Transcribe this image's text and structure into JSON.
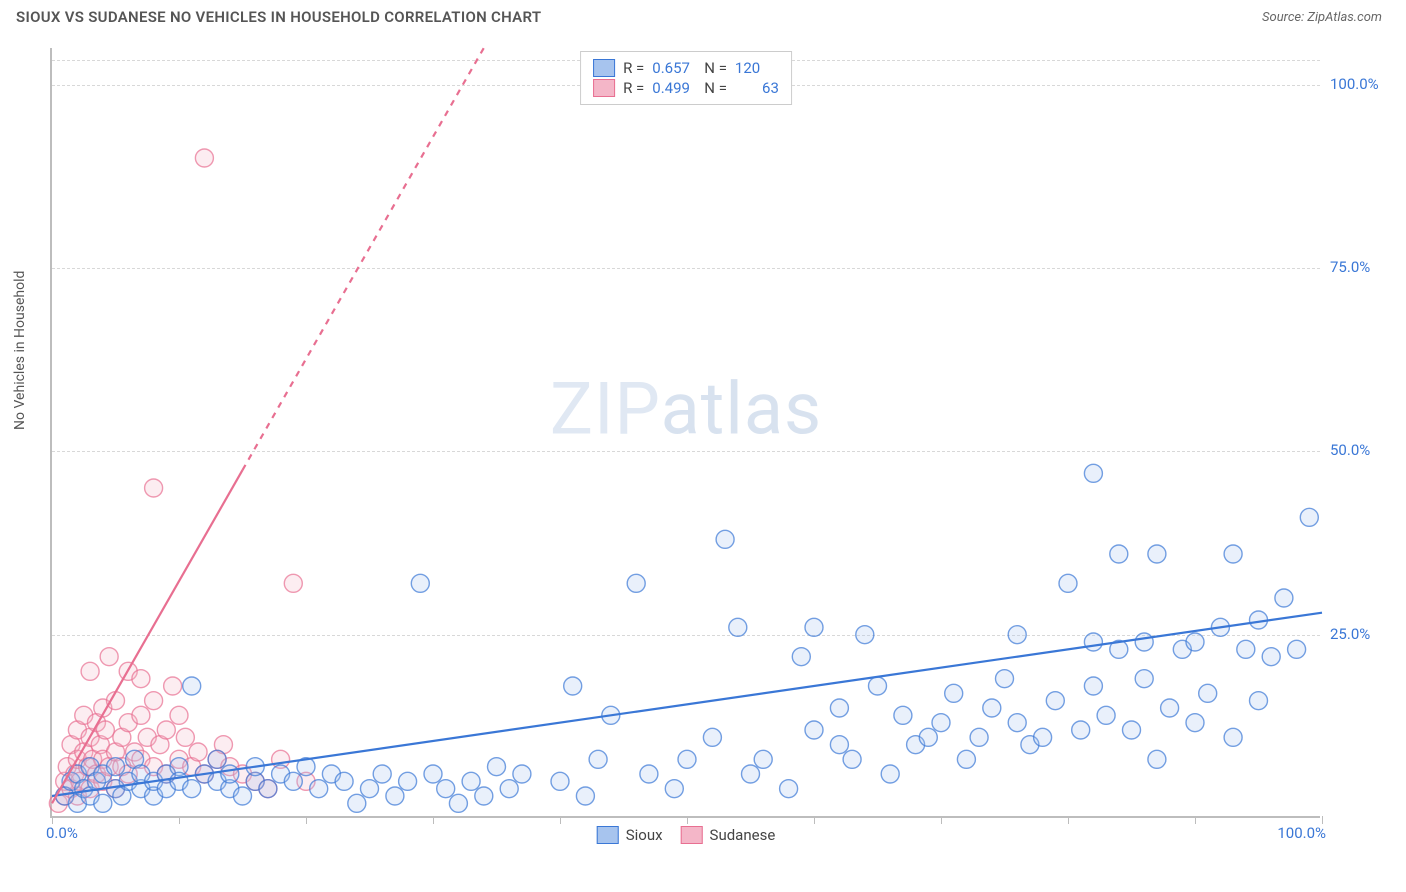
{
  "title": "SIOUX VS SUDANESE NO VEHICLES IN HOUSEHOLD CORRELATION CHART",
  "source": "Source: ZipAtlas.com",
  "ylabel": "No Vehicles in Household",
  "watermark": "ZIPatlas",
  "chart": {
    "type": "scatter",
    "xlim": [
      0,
      100
    ],
    "ylim": [
      0,
      105
    ],
    "xticks": [
      0,
      10,
      20,
      30,
      40,
      50,
      60,
      70,
      80,
      90,
      100
    ],
    "yticks": [
      25,
      50,
      75,
      100
    ],
    "ytick_labels": [
      "25.0%",
      "50.0%",
      "75.0%",
      "100.0%"
    ],
    "x_axis_labels": {
      "left": "0.0%",
      "right": "100.0%"
    },
    "background_color": "#ffffff",
    "grid_color": "#d8d8d8",
    "marker_radius": 9,
    "marker_fill_opacity": 0.25,
    "marker_stroke_width": 1.4,
    "line_width": 2.2
  },
  "series": {
    "sioux": {
      "label": "Sioux",
      "color": "#3a77d6",
      "fill": "#a7c4ee",
      "R": "0.657",
      "N": "120",
      "regression": {
        "x1": 0,
        "y1": 3,
        "x2": 100,
        "y2": 28,
        "dashed_from_x": null
      },
      "points": [
        [
          1,
          3
        ],
        [
          1.5,
          5
        ],
        [
          2,
          2
        ],
        [
          2,
          6
        ],
        [
          2.5,
          4
        ],
        [
          3,
          7
        ],
        [
          3,
          3
        ],
        [
          3.5,
          5
        ],
        [
          4,
          6
        ],
        [
          4,
          2
        ],
        [
          5,
          4
        ],
        [
          5,
          7
        ],
        [
          5.5,
          3
        ],
        [
          6,
          5
        ],
        [
          6.5,
          8
        ],
        [
          7,
          4
        ],
        [
          7,
          6
        ],
        [
          8,
          3
        ],
        [
          8,
          5
        ],
        [
          9,
          6
        ],
        [
          9,
          4
        ],
        [
          10,
          7
        ],
        [
          10,
          5
        ],
        [
          11,
          4
        ],
        [
          11,
          18
        ],
        [
          12,
          6
        ],
        [
          13,
          5
        ],
        [
          13,
          8
        ],
        [
          14,
          4
        ],
        [
          14,
          6
        ],
        [
          15,
          3
        ],
        [
          16,
          5
        ],
        [
          16,
          7
        ],
        [
          17,
          4
        ],
        [
          18,
          6
        ],
        [
          19,
          5
        ],
        [
          20,
          7
        ],
        [
          21,
          4
        ],
        [
          22,
          6
        ],
        [
          23,
          5
        ],
        [
          24,
          2
        ],
        [
          25,
          4
        ],
        [
          26,
          6
        ],
        [
          27,
          3
        ],
        [
          28,
          5
        ],
        [
          29,
          32
        ],
        [
          30,
          6
        ],
        [
          31,
          4
        ],
        [
          32,
          2
        ],
        [
          33,
          5
        ],
        [
          34,
          3
        ],
        [
          35,
          7
        ],
        [
          36,
          4
        ],
        [
          37,
          6
        ],
        [
          40,
          5
        ],
        [
          41,
          18
        ],
        [
          42,
          3
        ],
        [
          43,
          8
        ],
        [
          44,
          14
        ],
        [
          46,
          32
        ],
        [
          47,
          6
        ],
        [
          49,
          4
        ],
        [
          50,
          8
        ],
        [
          52,
          11
        ],
        [
          53,
          38
        ],
        [
          54,
          26
        ],
        [
          55,
          6
        ],
        [
          56,
          8
        ],
        [
          58,
          4
        ],
        [
          59,
          22
        ],
        [
          60,
          12
        ],
        [
          60,
          26
        ],
        [
          62,
          15
        ],
        [
          62,
          10
        ],
        [
          63,
          8
        ],
        [
          64,
          25
        ],
        [
          65,
          18
        ],
        [
          66,
          6
        ],
        [
          67,
          14
        ],
        [
          68,
          10
        ],
        [
          69,
          11
        ],
        [
          70,
          13
        ],
        [
          71,
          17
        ],
        [
          72,
          8
        ],
        [
          73,
          11
        ],
        [
          74,
          15
        ],
        [
          75,
          19
        ],
        [
          76,
          13
        ],
        [
          76,
          25
        ],
        [
          77,
          10
        ],
        [
          78,
          11
        ],
        [
          79,
          16
        ],
        [
          80,
          32
        ],
        [
          81,
          12
        ],
        [
          82,
          18
        ],
        [
          82,
          24
        ],
        [
          82,
          47
        ],
        [
          83,
          14
        ],
        [
          84,
          23
        ],
        [
          84,
          36
        ],
        [
          85,
          12
        ],
        [
          86,
          19
        ],
        [
          86,
          24
        ],
        [
          87,
          8
        ],
        [
          87,
          36
        ],
        [
          88,
          15
        ],
        [
          89,
          23
        ],
        [
          90,
          13
        ],
        [
          90,
          24
        ],
        [
          91,
          17
        ],
        [
          92,
          26
        ],
        [
          93,
          11
        ],
        [
          93,
          36
        ],
        [
          94,
          23
        ],
        [
          95,
          27
        ],
        [
          95,
          16
        ],
        [
          96,
          22
        ],
        [
          97,
          30
        ],
        [
          98,
          23
        ],
        [
          99,
          41
        ]
      ]
    },
    "sudanese": {
      "label": "Sudanese",
      "color": "#e86f91",
      "fill": "#f4b6c8",
      "R": "0.499",
      "N": "63",
      "regression": {
        "x1": 0,
        "y1": 2,
        "x2": 34,
        "y2": 105,
        "dashed_from_x": 15
      },
      "points": [
        [
          0.5,
          2
        ],
        [
          1,
          3
        ],
        [
          1,
          5
        ],
        [
          1.2,
          7
        ],
        [
          1.5,
          4
        ],
        [
          1.5,
          10
        ],
        [
          1.8,
          6
        ],
        [
          2,
          8
        ],
        [
          2,
          12
        ],
        [
          2,
          3
        ],
        [
          2.2,
          5
        ],
        [
          2.5,
          9
        ],
        [
          2.5,
          14
        ],
        [
          2.8,
          7
        ],
        [
          3,
          11
        ],
        [
          3,
          4
        ],
        [
          3,
          20
        ],
        [
          3.2,
          8
        ],
        [
          3.5,
          6
        ],
        [
          3.5,
          13
        ],
        [
          3.8,
          10
        ],
        [
          4,
          5
        ],
        [
          4,
          8
        ],
        [
          4,
          15
        ],
        [
          4.2,
          12
        ],
        [
          4.5,
          7
        ],
        [
          4.5,
          22
        ],
        [
          5,
          9
        ],
        [
          5,
          4
        ],
        [
          5,
          16
        ],
        [
          5.5,
          11
        ],
        [
          5.5,
          7
        ],
        [
          6,
          13
        ],
        [
          6,
          6
        ],
        [
          6,
          20
        ],
        [
          6.5,
          9
        ],
        [
          7,
          8
        ],
        [
          7,
          14
        ],
        [
          7,
          19
        ],
        [
          7.5,
          11
        ],
        [
          8,
          7
        ],
        [
          8,
          16
        ],
        [
          8,
          45
        ],
        [
          8.5,
          10
        ],
        [
          9,
          12
        ],
        [
          9,
          6
        ],
        [
          9.5,
          18
        ],
        [
          10,
          8
        ],
        [
          10,
          14
        ],
        [
          10.5,
          11
        ],
        [
          11,
          7
        ],
        [
          11.5,
          9
        ],
        [
          12,
          6
        ],
        [
          12,
          90
        ],
        [
          13,
          8
        ],
        [
          13.5,
          10
        ],
        [
          14,
          7
        ],
        [
          15,
          6
        ],
        [
          16,
          5
        ],
        [
          17,
          4
        ],
        [
          18,
          8
        ],
        [
          19,
          32
        ],
        [
          20,
          5
        ]
      ]
    }
  }
}
